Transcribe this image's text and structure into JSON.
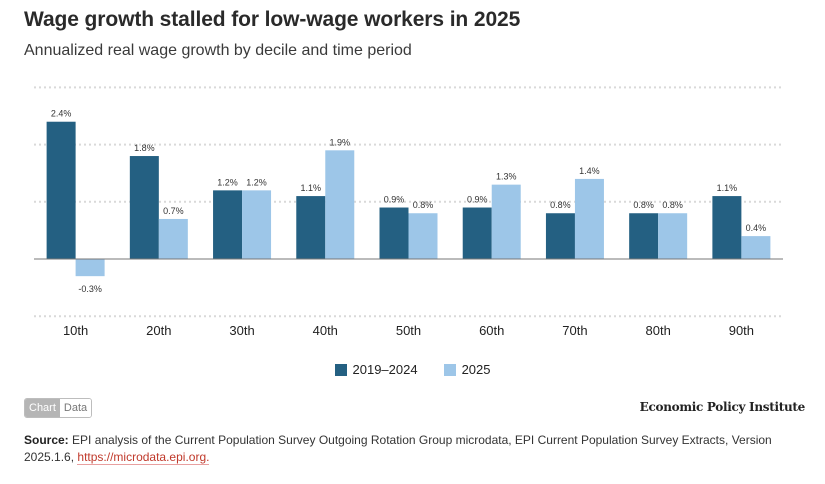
{
  "header": {
    "title": "Wage growth stalled for low-wage workers in 2025",
    "subtitle": "Annualized real wage growth by decile and time period"
  },
  "colors": {
    "series_2019_2024": "#246082",
    "series_2025": "#9dc6e8",
    "gridline": "#d9d9d9",
    "zero_line": "#777777"
  },
  "chart_data": {
    "type": "bar",
    "title": "Wage growth stalled for low-wage workers in 2025",
    "subtitle": "Annualized real wage growth by decile and time period",
    "xlabel": "",
    "ylabel": "",
    "categories": [
      "10th",
      "20th",
      "30th",
      "40th",
      "50th",
      "60th",
      "70th",
      "80th",
      "90th"
    ],
    "series": [
      {
        "name": "2019–2024",
        "values": [
          2.4,
          1.8,
          1.2,
          1.1,
          0.9,
          0.9,
          0.8,
          0.8,
          1.1
        ],
        "labels": [
          "2.4%",
          "1.8%",
          "1.2%",
          "1.1%",
          "0.9%",
          "0.9%",
          "0.8%",
          "0.8%",
          "1.1%"
        ]
      },
      {
        "name": "2025",
        "values": [
          -0.3,
          0.7,
          1.2,
          1.9,
          0.8,
          1.3,
          1.4,
          0.8,
          0.4
        ],
        "labels": [
          "-0.3%",
          "0.7%",
          "1.2%",
          "1.9%",
          "0.8%",
          "1.3%",
          "1.4%",
          "0.8%",
          "0.4%"
        ]
      }
    ],
    "ylim": [
      -1,
      3
    ],
    "grid": true,
    "gridlines": [
      -1,
      0,
      1,
      2,
      3
    ],
    "y_tick_labels_shown": false,
    "legend_position": "bottom-center"
  },
  "legend": {
    "items": [
      {
        "label": "2019–2024"
      },
      {
        "label": "2025"
      }
    ]
  },
  "footer": {
    "toggle_chart": "Chart",
    "toggle_data": "Data",
    "brand": "Economic Policy Institute",
    "source_label": "Source:",
    "source_text": " EPI analysis of the Current Population Survey Outgoing Rotation Group microdata, EPI Current Population Survey Extracts,  Version 2025.1.6, ",
    "source_link": "https://microdata.epi.org."
  }
}
